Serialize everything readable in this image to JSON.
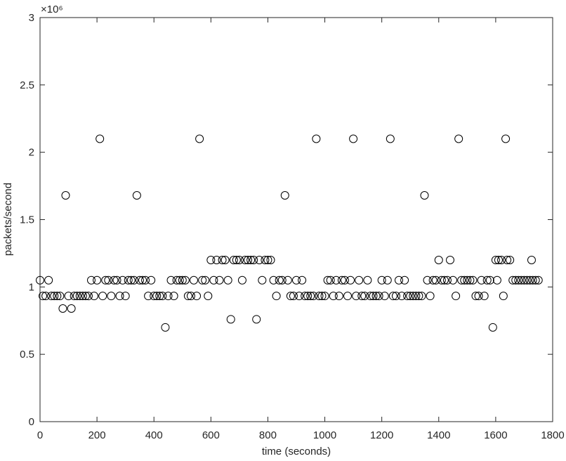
{
  "chart_data": {
    "type": "scatter",
    "xlabel": "time (seconds)",
    "ylabel": "packets/second",
    "y_exponent_label": "×10⁶",
    "marker": "open-circle",
    "color": "#000000",
    "xlim": [
      0,
      1800
    ],
    "xticks": [
      0,
      200,
      400,
      600,
      800,
      1000,
      1200,
      1400,
      1600,
      1800
    ],
    "ylim": [
      0,
      3000000
    ],
    "yticks": [
      {
        "value": 0,
        "label": "0"
      },
      {
        "value": 500000,
        "label": "0.5"
      },
      {
        "value": 1000000,
        "label": "1"
      },
      {
        "value": 1500000,
        "label": "1.5"
      },
      {
        "value": 2000000,
        "label": "2"
      },
      {
        "value": 2500000,
        "label": "2.5"
      },
      {
        "value": 3000000,
        "label": "3"
      }
    ],
    "x": [
      0,
      10,
      20,
      30,
      40,
      50,
      60,
      70,
      80,
      90,
      100,
      110,
      120,
      130,
      140,
      150,
      160,
      170,
      180,
      190,
      200,
      210,
      220,
      230,
      240,
      250,
      260,
      270,
      280,
      290,
      300,
      310,
      320,
      330,
      340,
      350,
      360,
      370,
      380,
      390,
      400,
      410,
      420,
      430,
      440,
      450,
      460,
      470,
      480,
      490,
      500,
      510,
      520,
      530,
      540,
      550,
      560,
      570,
      580,
      590,
      600,
      610,
      620,
      630,
      640,
      650,
      660,
      670,
      680,
      690,
      700,
      710,
      720,
      730,
      740,
      750,
      760,
      770,
      780,
      790,
      800,
      810,
      820,
      830,
      840,
      850,
      860,
      870,
      880,
      890,
      900,
      910,
      920,
      930,
      940,
      950,
      960,
      970,
      980,
      990,
      1000,
      1010,
      1020,
      1030,
      1040,
      1050,
      1060,
      1070,
      1080,
      1090,
      1100,
      1110,
      1120,
      1130,
      1140,
      1150,
      1160,
      1170,
      1180,
      1190,
      1200,
      1210,
      1220,
      1230,
      1240,
      1250,
      1260,
      1270,
      1280,
      1290,
      1300,
      1310,
      1320,
      1330,
      1340,
      1350,
      1360,
      1370,
      1380,
      1390,
      1400,
      1410,
      1420,
      1430,
      1440,
      1450,
      1460,
      1470,
      1480,
      1490,
      1500,
      1510,
      1520,
      1530,
      1540,
      1550,
      1560,
      1570,
      1580,
      1590,
      1600,
      1605,
      1610,
      1620,
      1627,
      1635,
      1640,
      1650,
      1660,
      1670,
      1680,
      1690,
      1700,
      1710,
      1720,
      1726,
      1730,
      1740,
      1750
    ],
    "values": [
      1050000,
      933000,
      933000,
      1050000,
      933000,
      933000,
      933000,
      933000,
      840000,
      1680000,
      933000,
      840000,
      933000,
      933000,
      933000,
      933000,
      933000,
      933000,
      1050000,
      933000,
      1050000,
      2100000,
      933000,
      1050000,
      1050000,
      933000,
      1050000,
      1050000,
      933000,
      1050000,
      933000,
      1050000,
      1050000,
      1050000,
      1680000,
      1050000,
      1050000,
      1050000,
      933000,
      1050000,
      933000,
      933000,
      933000,
      933000,
      700000,
      933000,
      1050000,
      933000,
      1050000,
      1050000,
      1050000,
      1050000,
      933000,
      933000,
      1050000,
      933000,
      2100000,
      1050000,
      1050000,
      933000,
      1200000,
      1050000,
      1200000,
      1050000,
      1200000,
      1200000,
      1050000,
      760000,
      1200000,
      1200000,
      1200000,
      1050000,
      1200000,
      1200000,
      1200000,
      1200000,
      760000,
      1200000,
      1050000,
      1200000,
      1200000,
      1200000,
      1050000,
      933000,
      1050000,
      1050000,
      1680000,
      1050000,
      933000,
      933000,
      1050000,
      933000,
      1050000,
      933000,
      933000,
      933000,
      933000,
      2100000,
      933000,
      933000,
      933000,
      1050000,
      1050000,
      933000,
      1050000,
      933000,
      1050000,
      1050000,
      933000,
      1050000,
      2100000,
      933000,
      1050000,
      933000,
      933000,
      1050000,
      933000,
      933000,
      933000,
      933000,
      1050000,
      933000,
      1050000,
      2100000,
      933000,
      933000,
      1050000,
      933000,
      1050000,
      933000,
      933000,
      933000,
      933000,
      933000,
      933000,
      1680000,
      1050000,
      933000,
      1050000,
      1050000,
      1200000,
      1050000,
      1050000,
      1050000,
      1200000,
      1050000,
      933000,
      2100000,
      1050000,
      1050000,
      1050000,
      1050000,
      1050000,
      933000,
      933000,
      1050000,
      933000,
      1050000,
      1050000,
      700000,
      1200000,
      1050000,
      1200000,
      1200000,
      933000,
      2100000,
      1200000,
      1200000,
      1050000,
      1050000,
      1050000,
      1050000,
      1050000,
      1050000,
      1050000,
      1200000,
      1050000,
      1050000,
      1050000
    ]
  }
}
